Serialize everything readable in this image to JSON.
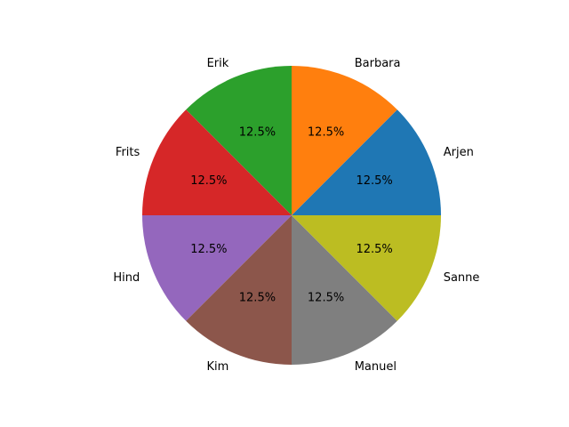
{
  "chart_data": {
    "type": "pie",
    "categories": [
      "Arjen",
      "Barbara",
      "Erik",
      "Frits",
      "Hind",
      "Kim",
      "Manuel",
      "Sanne"
    ],
    "values": [
      1,
      1,
      1,
      1,
      1,
      1,
      1,
      1
    ],
    "percent_labels": [
      "12.5%",
      "12.5%",
      "12.5%",
      "12.5%",
      "12.5%",
      "12.5%",
      "12.5%",
      "12.5%"
    ],
    "colors": [
      "#1f77b4",
      "#ff7f0e",
      "#2ca02c",
      "#d62728",
      "#9467bd",
      "#8c564b",
      "#7f7f7f",
      "#bcbd22"
    ],
    "title": "",
    "start_angle_deg": 0,
    "direction": "counterclockwise"
  }
}
